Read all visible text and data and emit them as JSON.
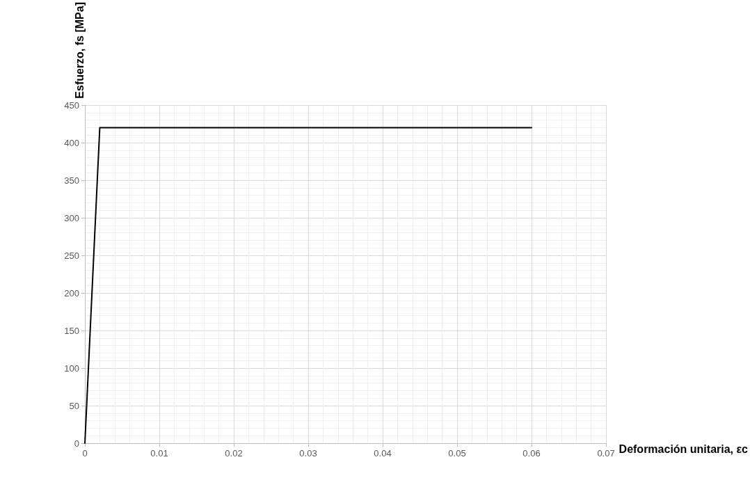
{
  "chart_data": {
    "type": "line",
    "xlabel": "Deformación unitaria, εc",
    "ylabel": "Esfuerzo, fs [MPa]",
    "series": [
      {
        "color": "#000000",
        "x": [
          0,
          0.002,
          0.06
        ],
        "values": [
          0,
          420,
          420
        ]
      }
    ],
    "xlim": [
      0,
      0.07
    ],
    "xticks": [
      0,
      0.01,
      0.02,
      0.03,
      0.04,
      0.05,
      0.06,
      0.07
    ],
    "ylim": [
      0,
      450
    ],
    "yticks": [
      0,
      50,
      100,
      150,
      200,
      250,
      300,
      350,
      400,
      450
    ],
    "grid": true,
    "marker": "none",
    "line_style": "solid"
  }
}
